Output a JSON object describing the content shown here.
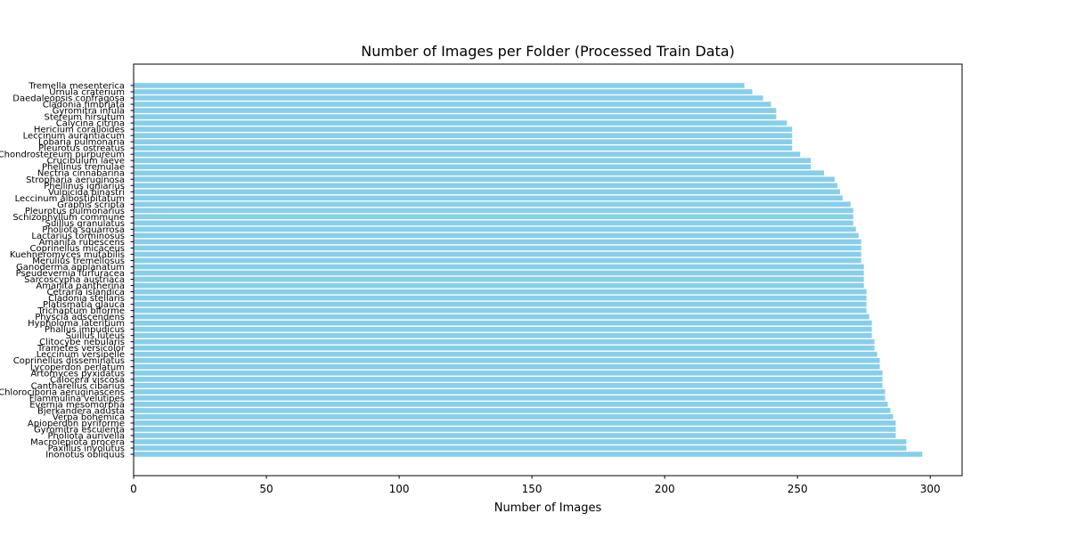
{
  "chart_data": {
    "type": "bar",
    "orientation": "horizontal",
    "title": "Number of Images per Folder (Processed Train Data)",
    "xlabel": "Number of Images",
    "ylabel": "",
    "xlim": [
      0,
      312
    ],
    "xticks": [
      0,
      50,
      100,
      150,
      200,
      250,
      300
    ],
    "grid": false,
    "bar_color": "#87CEEB",
    "categories": [
      "Tremella mesenterica",
      "Urnula craterium",
      "Daedaleopsis confragosa",
      "Cladonia fimbriata",
      "Gyromitra infula",
      "Stereum hirsutum",
      "Calycina citrina",
      "Hericium coralloides",
      "Leccinum aurantiacum",
      "Lobaria pulmonaria",
      "Pleurotus ostreatus",
      "Chondrostereum purpureum",
      "Crucibulum laeve",
      "Phellinus tremulae",
      "Nectria cinnabarina",
      "Stropharia aeruginosa",
      "Phellinus igniarius",
      "Vulpicida pinastri",
      "Leccinum albostipitatum",
      "Graphis scripta",
      "Pleurotus pulmonarius",
      "Schizophyllum commune",
      "Suillus granulatus",
      "Pholiota squarrosa",
      "Lactarius torminosus",
      "Amanita rubescens",
      "Coprinellus micaceus",
      "Kuehneromyces mutabilis",
      "Merulius tremellosus",
      "Ganoderma applanatum",
      "Pseudevernia furfuracea",
      "Sarcoscypha austriaca",
      "Amanita pantherina",
      "Cetraria islandica",
      "Cladonia stellaris",
      "Platismatia glauca",
      "Trichaptum biforme",
      "Physcia adscendens",
      "Hypholoma lateritium",
      "Phallus impudicus",
      "Suillus luteus",
      "Clitocybe nebularis",
      "Trametes versicolor",
      "Leccinum versipelle",
      "Coprinellus disseminatus",
      "Lycoperdon perlatum",
      "Artomyces pyxidatus",
      "Calocera viscosa",
      "Cantharellus cibarius",
      "Chlorociboria aeruginascens",
      "Flammulina velutipes",
      "Evernia mesomorpha",
      "Bjerkandera adusta",
      "Verpa bohemica",
      "Apioperdon pyriforme",
      "Gyromitra esculenta",
      "Pholiota aurivella",
      "Macrolepiota procera",
      "Paxillus involutus",
      "Inonotus obliquus"
    ],
    "values": [
      230,
      233,
      237,
      240,
      242,
      242,
      246,
      248,
      248,
      248,
      248,
      251,
      255,
      255,
      260,
      264,
      265,
      266,
      267,
      270,
      271,
      271,
      271,
      272,
      273,
      274,
      274,
      274,
      274,
      275,
      275,
      275,
      275,
      276,
      276,
      276,
      276,
      277,
      278,
      278,
      278,
      279,
      279,
      280,
      281,
      281,
      282,
      282,
      282,
      283,
      283,
      284,
      285,
      286,
      287,
      287,
      287,
      291,
      291,
      297
    ]
  }
}
